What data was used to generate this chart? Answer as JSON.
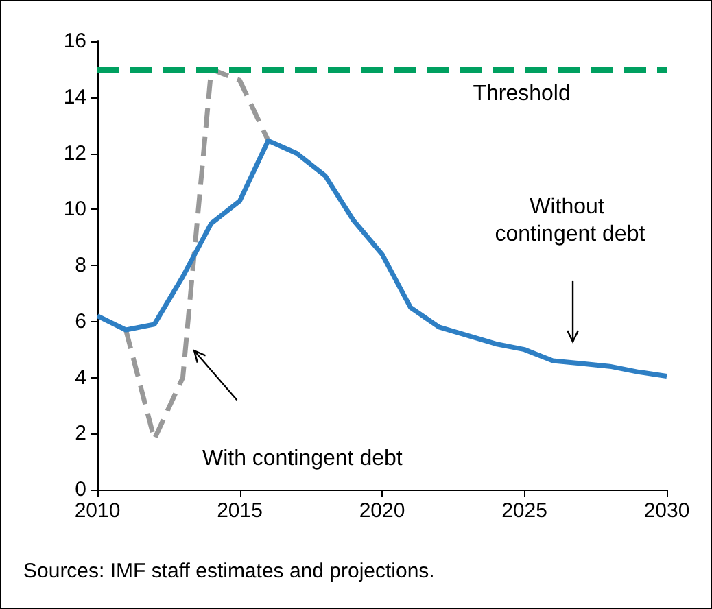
{
  "chart_data": {
    "type": "line",
    "x": [
      2010,
      2011,
      2012,
      2013,
      2014,
      2015,
      2016,
      2017,
      2018,
      2019,
      2020,
      2021,
      2022,
      2023,
      2024,
      2025,
      2026,
      2027,
      2028,
      2029,
      2030
    ],
    "series": [
      {
        "color": "#2e7fc4",
        "values": [
          6.2,
          5.7,
          5.9,
          7.6,
          9.5,
          10.3,
          12.45,
          12.0,
          11.2,
          9.6,
          8.4,
          6.5,
          5.8,
          5.5,
          5.2,
          5.0,
          4.6,
          4.5,
          4.4,
          4.2,
          4.05
        ]
      },
      {
        "color": "#999999",
        "line_style": "dashed",
        "x": [
          2011,
          2012,
          2013,
          2014,
          2015,
          2016
        ],
        "values": [
          5.7,
          1.8,
          4.0,
          15.0,
          14.6,
          12.45
        ]
      }
    ],
    "xlim": [
      2010,
      2030
    ],
    "xticks": [
      2010,
      2015,
      2020,
      2025,
      2030
    ],
    "ylim": [
      0,
      16
    ],
    "yticks": [
      0,
      2,
      4,
      6,
      8,
      10,
      12,
      14,
      16
    ],
    "grid": false,
    "marker": "none",
    "line_style": "solid",
    "ref_lines": [
      {
        "axis": "y",
        "value": 15,
        "label": "Threshold",
        "color": "#00a060",
        "line_style": "dashed"
      }
    ],
    "annotations": [
      "Without contingent debt",
      "With contingent debt",
      "Sources: IMF staff estimates and projections."
    ]
  }
}
